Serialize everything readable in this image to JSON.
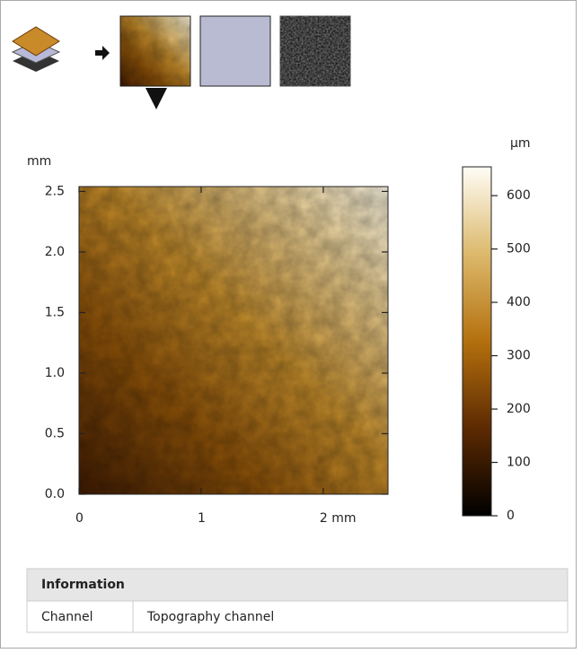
{
  "plot": {
    "y_unit": "mm",
    "xlim": [
      0,
      2.53
    ],
    "ylim": [
      0,
      2.54
    ],
    "xticks": [
      0,
      1,
      {
        "value": 2,
        "label": "2 mm"
      }
    ],
    "yticks": [
      {
        "value": 0,
        "label": "0.0"
      },
      {
        "value": 0.5,
        "label": "0.5"
      },
      {
        "value": 1,
        "label": "1.0"
      },
      {
        "value": 1.5,
        "label": "1.5"
      },
      {
        "value": 2,
        "label": "2.0"
      },
      {
        "value": 2.5,
        "label": "2.5"
      }
    ],
    "colorbar": {
      "unit": "µm",
      "lim": [
        0,
        654
      ],
      "ticks": [
        0,
        100,
        200,
        300,
        400,
        500,
        600
      ]
    }
  },
  "info": {
    "title": "Information",
    "rows": [
      [
        "Channel",
        "Topography channel"
      ]
    ]
  }
}
